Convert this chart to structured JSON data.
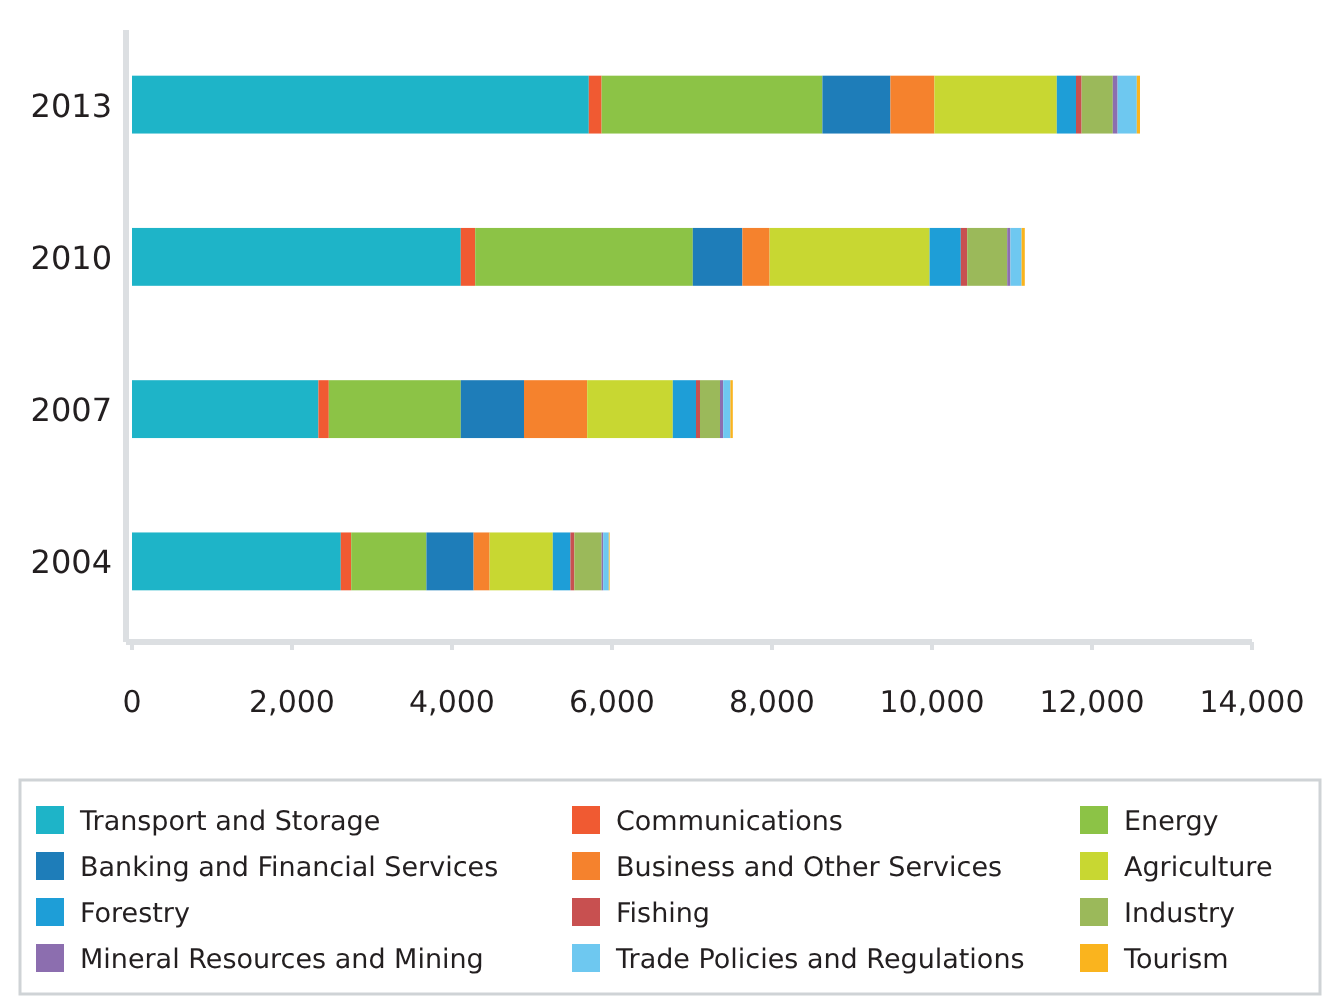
{
  "chart_data": {
    "type": "bar",
    "orientation": "horizontal",
    "stacked": true,
    "categories": [
      "2013",
      "2010",
      "2007",
      "2004"
    ],
    "xlim": [
      0,
      14000
    ],
    "xticks": [
      {
        "value": 0,
        "label": "0"
      },
      {
        "value": 2000,
        "label": "2,000"
      },
      {
        "value": 4000,
        "label": "4,000"
      },
      {
        "value": 6000,
        "label": "6,000"
      },
      {
        "value": 8000,
        "label": "8,000"
      },
      {
        "value": 10000,
        "label": "10,000"
      },
      {
        "value": 12000,
        "label": "12,000"
      },
      {
        "value": 14000,
        "label": "14,000"
      }
    ],
    "grid": false,
    "legend": "bottom",
    "series": [
      {
        "name": "Transport and Storage",
        "color": "#1eb4c8",
        "values": [
          5710,
          4110,
          2330,
          2610
        ]
      },
      {
        "name": "Communications",
        "color": "#f05a32",
        "values": [
          160,
          180,
          130,
          130
        ]
      },
      {
        "name": "Energy",
        "color": "#8cc346",
        "values": [
          2760,
          2720,
          1650,
          940
        ]
      },
      {
        "name": "Banking and Financial Services",
        "color": "#1e7db9",
        "values": [
          850,
          620,
          790,
          590
        ]
      },
      {
        "name": "Business and Other Services",
        "color": "#f5822d",
        "values": [
          550,
          340,
          790,
          200
        ]
      },
      {
        "name": "Agriculture",
        "color": "#c8d732",
        "values": [
          1530,
          2000,
          1070,
          790
        ]
      },
      {
        "name": "Forestry",
        "color": "#1e9ed7",
        "values": [
          240,
          390,
          290,
          220
        ]
      },
      {
        "name": "Fishing",
        "color": "#c85050",
        "values": [
          70,
          80,
          50,
          50
        ]
      },
      {
        "name": "Industry",
        "color": "#9bb95a",
        "values": [
          390,
          500,
          250,
          340
        ]
      },
      {
        "name": "Mineral Resources and Mining",
        "color": "#8c6eaf",
        "values": [
          60,
          40,
          40,
          20
        ]
      },
      {
        "name": "Trade Policies and Regulations",
        "color": "#6ec8f0",
        "values": [
          240,
          140,
          90,
          70
        ]
      },
      {
        "name": "Tourism",
        "color": "#fab41e",
        "values": [
          40,
          40,
          30,
          10
        ]
      }
    ]
  }
}
